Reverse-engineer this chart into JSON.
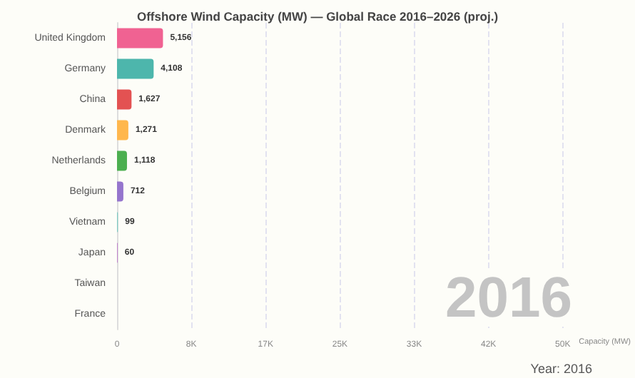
{
  "chart_data": {
    "type": "bar",
    "orientation": "horizontal",
    "title": "Offshore Wind Capacity (MW) — Global Race 2016–2026 (proj.)",
    "xlabel": "Capacity (MW)",
    "categories": [
      "United Kingdom",
      "Germany",
      "China",
      "Denmark",
      "Netherlands",
      "Belgium",
      "Vietnam",
      "Japan",
      "Taiwan",
      "France"
    ],
    "values": [
      5156,
      4108,
      1627,
      1271,
      1118,
      712,
      99,
      60,
      0,
      0
    ],
    "value_labels": [
      "5,156",
      "4,108",
      "1,627",
      "1,271",
      "1,118",
      "712",
      "99",
      "60",
      null,
      null
    ],
    "colors": [
      "#f06292",
      "#4db6ac",
      "#e35252",
      "#ffb74d",
      "#4caf50",
      "#9575cd",
      "#80cbc4",
      "#ba68c8",
      "#64b5f6",
      "#7986cb"
    ],
    "xlim": [
      0,
      50000
    ],
    "xticks": [
      0,
      {
        "value": 8333,
        "label": "8K"
      },
      {
        "value": 16667,
        "label": "17K"
      },
      {
        "value": 25000,
        "label": "25K"
      },
      {
        "value": 33333,
        "label": "33K"
      },
      {
        "value": 41667,
        "label": "42K"
      },
      {
        "value": 50000,
        "label": "50K"
      }
    ],
    "grid": "x",
    "annotations": [
      "2016",
      "Year: 2016"
    ]
  }
}
